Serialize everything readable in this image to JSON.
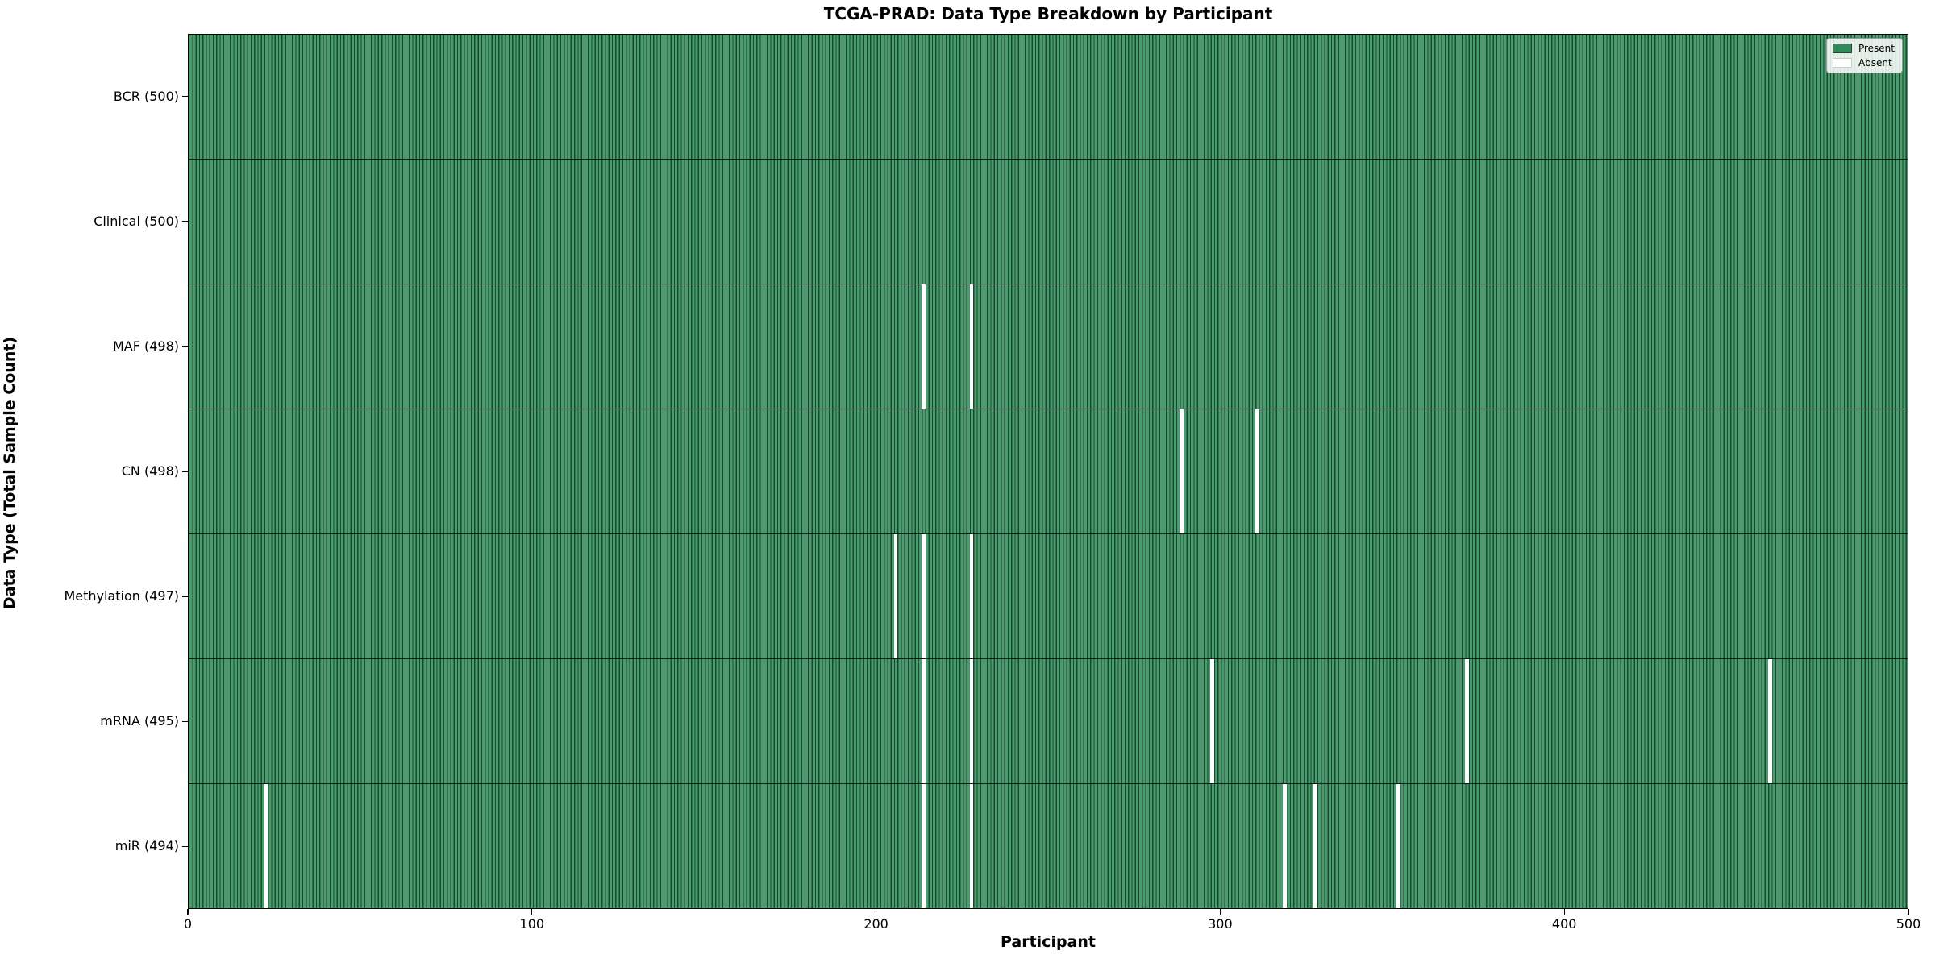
{
  "chart_data": {
    "type": "heatmap",
    "title": "TCGA-PRAD: Data Type Breakdown by Participant",
    "xlabel": "Participant",
    "ylabel": "Data Type (Total Sample Count)",
    "x_ticks": [
      0,
      100,
      200,
      300,
      400,
      500
    ],
    "x_range": [
      0,
      500
    ],
    "n_participants": 500,
    "rows": [
      {
        "label": "BCR (500)",
        "data_type": "BCR",
        "present_count": 500,
        "absent_participants": []
      },
      {
        "label": "Clinical (500)",
        "data_type": "Clinical",
        "present_count": 500,
        "absent_participants": []
      },
      {
        "label": "MAF (498)",
        "data_type": "MAF",
        "present_count": 498,
        "absent_participants": [
          213,
          227
        ]
      },
      {
        "label": "CN (498)",
        "data_type": "CN",
        "present_count": 498,
        "absent_participants": [
          288,
          310
        ]
      },
      {
        "label": "Methylation (497)",
        "data_type": "Methylation",
        "present_count": 497,
        "absent_participants": [
          205,
          213,
          227
        ]
      },
      {
        "label": "mRNA (495)",
        "data_type": "mRNA",
        "present_count": 495,
        "absent_participants": [
          213,
          227,
          297,
          371,
          459
        ]
      },
      {
        "label": "miR (494)",
        "data_type": "miR",
        "present_count": 494,
        "absent_participants": [
          22,
          213,
          227,
          318,
          327,
          351
        ]
      }
    ],
    "legend": {
      "position": "upper-right",
      "entries": [
        {
          "label": "Present",
          "color": "#2e8b57"
        },
        {
          "label": "Absent",
          "color": "#ffffff"
        }
      ]
    },
    "colors": {
      "present": "#2e8b57",
      "absent": "#ffffff",
      "bar_edge": "#000000"
    }
  }
}
